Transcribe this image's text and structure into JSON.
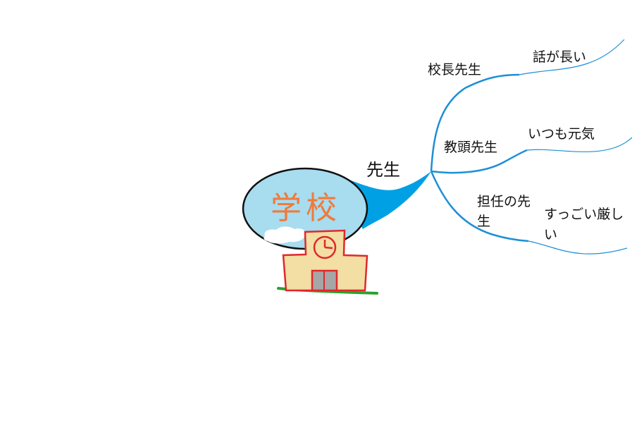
{
  "center": {
    "title": "学校"
  },
  "main_branch": {
    "label": "先生"
  },
  "branches": [
    {
      "label": "校長先生",
      "note": "話が長い"
    },
    {
      "label": "教頭先生",
      "note": "いつも元気"
    },
    {
      "label": "担任の先生",
      "note": "すっごい厳しい"
    }
  ],
  "colors": {
    "line": "#1d8fd6",
    "main_branch_fill": "#00a0e4",
    "ellipse_fill": "#a8dcef",
    "title_color": "#f07a3a",
    "building_fill": "#f3dea4",
    "building_outline": "#e0282c",
    "door_fill": "#a6a6a6",
    "grass": "#2aa12e"
  }
}
